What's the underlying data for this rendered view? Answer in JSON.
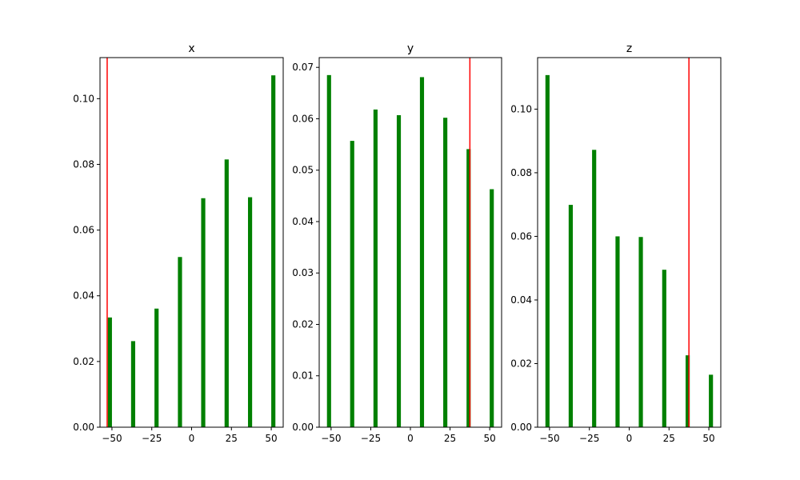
{
  "chart_data": [
    {
      "type": "bar",
      "title": "x",
      "xlabel": "",
      "ylabel": "",
      "x": [
        -51.3,
        -36.7,
        -22.0,
        -7.3,
        7.3,
        22.0,
        36.7,
        51.3
      ],
      "values": [
        0.0334,
        0.0262,
        0.0361,
        0.0518,
        0.0697,
        0.0815,
        0.07,
        0.1071
      ],
      "bar_color": "#008000",
      "vline": {
        "x": -53.0,
        "color": "#ff0000"
      },
      "xlim": [
        -57.5,
        57.5
      ],
      "ylim": [
        0,
        0.1125
      ],
      "xticks": [
        -50,
        -25,
        0,
        25,
        50
      ],
      "xticklabels": [
        "−50",
        "−25",
        "0",
        "25",
        "50"
      ],
      "yticks": [
        0.0,
        0.02,
        0.04,
        0.06,
        0.08,
        0.1
      ],
      "yticklabels": [
        "0.00",
        "0.02",
        "0.04",
        "0.06",
        "0.08",
        "0.10"
      ],
      "grid": false
    },
    {
      "type": "bar",
      "title": "y",
      "xlabel": "",
      "ylabel": "",
      "x": [
        -51.3,
        -36.7,
        -22.0,
        -7.3,
        7.3,
        22.0,
        36.7,
        51.3
      ],
      "values": [
        0.0685,
        0.0557,
        0.0618,
        0.0607,
        0.0681,
        0.0602,
        0.0541,
        0.0463
      ],
      "bar_color": "#008000",
      "vline": {
        "x": 37.5,
        "color": "#ff0000"
      },
      "xlim": [
        -57.5,
        57.5
      ],
      "ylim": [
        0,
        0.0719
      ],
      "xticks": [
        -50,
        -25,
        0,
        25,
        50
      ],
      "xticklabels": [
        "−50",
        "−25",
        "0",
        "25",
        "50"
      ],
      "yticks": [
        0.0,
        0.01,
        0.02,
        0.03,
        0.04,
        0.05,
        0.06,
        0.07
      ],
      "yticklabels": [
        "0.00",
        "0.01",
        "0.02",
        "0.03",
        "0.04",
        "0.05",
        "0.06",
        "0.07"
      ],
      "grid": false
    },
    {
      "type": "bar",
      "title": "z",
      "xlabel": "",
      "ylabel": "",
      "x": [
        -51.3,
        -36.7,
        -22.0,
        -7.3,
        7.3,
        22.0,
        36.7,
        51.3
      ],
      "values": [
        0.1107,
        0.0699,
        0.0872,
        0.06,
        0.0598,
        0.0495,
        0.0226,
        0.0165
      ],
      "bar_color": "#008000",
      "vline": {
        "x": 37.5,
        "color": "#ff0000"
      },
      "xlim": [
        -57.5,
        57.5
      ],
      "ylim": [
        0,
        0.1162
      ],
      "xticks": [
        -50,
        -25,
        0,
        25,
        50
      ],
      "xticklabels": [
        "−50",
        "−25",
        "0",
        "25",
        "50"
      ],
      "yticks": [
        0.0,
        0.02,
        0.04,
        0.06,
        0.08,
        0.1
      ],
      "yticklabels": [
        "0.00",
        "0.02",
        "0.04",
        "0.06",
        "0.08",
        "0.10"
      ],
      "grid": false
    }
  ]
}
